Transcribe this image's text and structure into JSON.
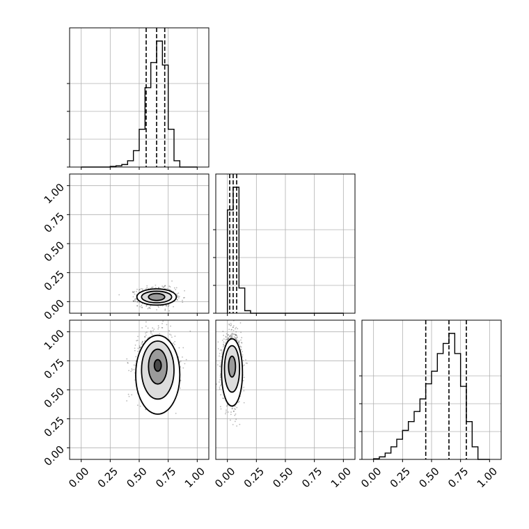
{
  "chart_data": {
    "type": "corner",
    "parameters": 3,
    "axis_range": [
      -0.1,
      1.1
    ],
    "tick_values": [
      0.0,
      0.25,
      0.5,
      0.75,
      1.0
    ],
    "tick_labels": [
      "0.00",
      "0.25",
      "0.50",
      "0.75",
      "1.00"
    ],
    "grid": true,
    "histogram_bin_edges": [
      0.0,
      0.05,
      0.1,
      0.15,
      0.2,
      0.25,
      0.3,
      0.35,
      0.4,
      0.45,
      0.5,
      0.55,
      0.6,
      0.65,
      0.7,
      0.75,
      0.8,
      0.85,
      0.9,
      0.95,
      1.0
    ],
    "histograms": [
      {
        "param": 1,
        "counts": [
          0,
          0,
          0,
          0,
          0,
          0.005,
          0.01,
          0.02,
          0.05,
          0.13,
          0.3,
          0.63,
          0.83,
          1.0,
          0.81,
          0.3,
          0.05,
          0,
          0,
          0
        ],
        "quantiles": [
          0.56,
          0.65,
          0.72
        ]
      },
      {
        "param": 2,
        "counts": [
          0.82,
          1.0,
          0.2,
          0.02,
          0,
          0,
          0,
          0,
          0,
          0,
          0,
          0,
          0,
          0,
          0,
          0,
          0,
          0,
          0,
          0
        ],
        "quantiles": [
          0.02,
          0.05,
          0.08
        ]
      },
      {
        "param": 3,
        "counts": [
          0.005,
          0.02,
          0.05,
          0.1,
          0.16,
          0.23,
          0.3,
          0.38,
          0.48,
          0.6,
          0.7,
          0.84,
          0.92,
          1.0,
          0.84,
          0.58,
          0.3,
          0.1,
          0,
          0
        ],
        "quantiles": [
          0.45,
          0.65,
          0.8
        ]
      }
    ],
    "scatter_panels": [
      {
        "row": 2,
        "col": 1,
        "x_mean": 0.65,
        "y_mean": 0.04,
        "x_sd": 0.08,
        "y_sd": 0.04,
        "points": 900,
        "contours": [
          {
            "cx": 0.65,
            "cy": 0.04,
            "rx": 0.17,
            "ry": 0.07
          },
          {
            "cx": 0.65,
            "cy": 0.04,
            "rx": 0.13,
            "ry": 0.05
          },
          {
            "cx": 0.65,
            "cy": 0.04,
            "rx": 0.07,
            "ry": 0.03
          }
        ]
      },
      {
        "row": 3,
        "col": 1,
        "x_mean": 0.65,
        "y_mean": 0.7,
        "x_sd": 0.08,
        "y_sd": 0.14,
        "points": 1600,
        "contours": [
          {
            "cx": 0.66,
            "cy": 0.63,
            "rx": 0.19,
            "ry": 0.34
          },
          {
            "cx": 0.66,
            "cy": 0.67,
            "rx": 0.14,
            "ry": 0.25
          },
          {
            "cx": 0.66,
            "cy": 0.7,
            "rx": 0.08,
            "ry": 0.15
          },
          {
            "cx": 0.66,
            "cy": 0.71,
            "rx": 0.03,
            "ry": 0.05
          }
        ]
      },
      {
        "row": 3,
        "col": 2,
        "x_mean": 0.04,
        "y_mean": 0.68,
        "x_sd": 0.04,
        "y_sd": 0.14,
        "points": 1600,
        "contours": [
          {
            "cx": 0.04,
            "cy": 0.65,
            "rx": 0.09,
            "ry": 0.29
          },
          {
            "cx": 0.04,
            "cy": 0.68,
            "rx": 0.065,
            "ry": 0.2
          },
          {
            "cx": 0.04,
            "cy": 0.7,
            "rx": 0.03,
            "ry": 0.09
          }
        ]
      }
    ]
  }
}
